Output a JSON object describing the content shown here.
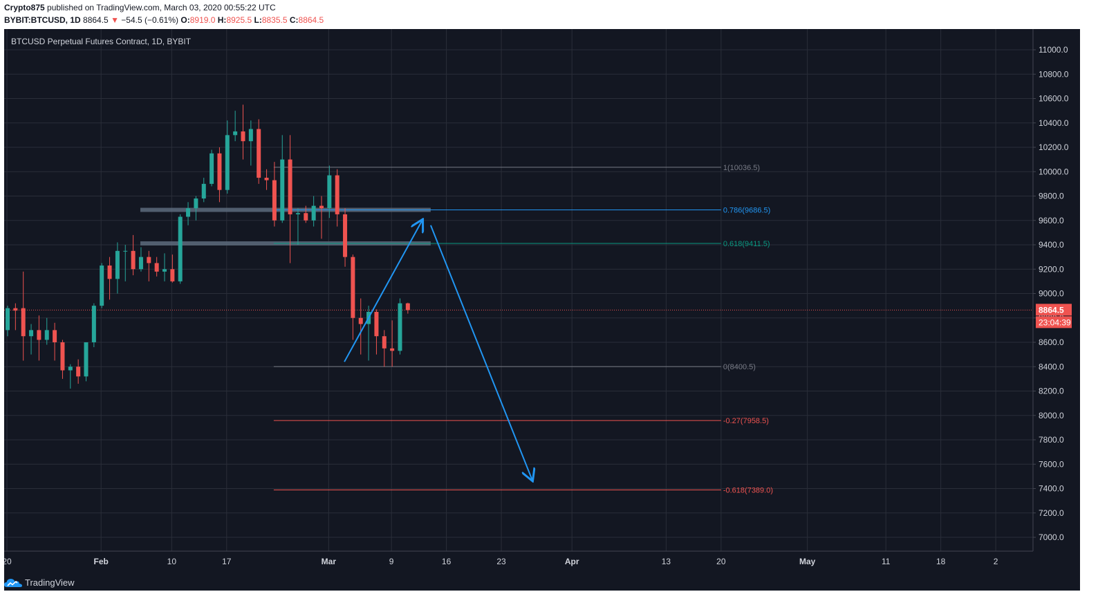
{
  "header": {
    "author": "Crypto875",
    "published_text": "published on TradingView.com, March 03, 2020 00:55:22 UTC",
    "symbol": "BYBIT:BTCUSD, 1D",
    "last": "8864.5",
    "change_arrow": "▼",
    "change": "−54.5 (−0.61%)",
    "o_label": "O:",
    "o_val": "8919.0",
    "h_label": "H:",
    "h_val": "8925.5",
    "l_label": "L:",
    "l_val": "8835.5",
    "c_label": "C:",
    "c_val": "8864.5"
  },
  "branding": {
    "name": "TradingView"
  },
  "chart_data": {
    "type": "candlestick",
    "title": "BTCUSD Perpetual Futures Contract, 1D, BYBIT",
    "ylim": [
      6900,
      11150
    ],
    "y_ticks": [
      "11000.0",
      "10800.0",
      "10600.0",
      "10400.0",
      "10200.0",
      "10000.0",
      "9800.0",
      "9600.0",
      "9400.0",
      "9200.0",
      "9000.0",
      "8800.0",
      "8600.0",
      "8400.0",
      "8200.0",
      "8000.0",
      "7800.0",
      "7600.0",
      "7400.0",
      "7200.0",
      "7000.0"
    ],
    "x_ticks": [
      {
        "label": "20",
        "day": 0
      },
      {
        "label": "Feb",
        "day": 12
      },
      {
        "label": "10",
        "day": 21
      },
      {
        "label": "17",
        "day": 28
      },
      {
        "label": "Mar",
        "day": 41
      },
      {
        "label": "9",
        "day": 49
      },
      {
        "label": "16",
        "day": 56
      },
      {
        "label": "23",
        "day": 63
      },
      {
        "label": "Apr",
        "day": 72
      },
      {
        "label": "13",
        "day": 84
      },
      {
        "label": "20",
        "day": 91
      },
      {
        "label": "May",
        "day": 102
      },
      {
        "label": "11",
        "day": 112
      },
      {
        "label": "18",
        "day": 119
      },
      {
        "label": "2",
        "day": 126
      }
    ],
    "candles": [
      [
        8700,
        8900,
        8650,
        8880
      ],
      [
        8880,
        8920,
        8700,
        8860
      ],
      [
        8880,
        9180,
        8450,
        8650
      ],
      [
        8650,
        8750,
        8500,
        8700
      ],
      [
        8700,
        8820,
        8450,
        8620
      ],
      [
        8620,
        8800,
        8580,
        8700
      ],
      [
        8700,
        8760,
        8450,
        8600
      ],
      [
        8600,
        8620,
        8300,
        8370
      ],
      [
        8370,
        8420,
        8220,
        8400
      ],
      [
        8400,
        8460,
        8260,
        8320
      ],
      [
        8320,
        8600,
        8280,
        8600
      ],
      [
        8600,
        8920,
        8560,
        8900
      ],
      [
        8900,
        9250,
        8880,
        9230
      ],
      [
        9230,
        9300,
        8950,
        9120
      ],
      [
        9120,
        9420,
        9000,
        9350
      ],
      [
        9350,
        9400,
        9100,
        9350
      ],
      [
        9350,
        9480,
        9150,
        9200
      ],
      [
        9200,
        9380,
        9180,
        9300
      ],
      [
        9300,
        9350,
        9100,
        9250
      ],
      [
        9250,
        9300,
        9140,
        9180
      ],
      [
        9180,
        9330,
        9100,
        9200
      ],
      [
        9200,
        9320,
        9090,
        9100
      ],
      [
        9100,
        9650,
        9080,
        9630
      ],
      [
        9630,
        9750,
        9560,
        9700
      ],
      [
        9700,
        9800,
        9600,
        9780
      ],
      [
        9780,
        9950,
        9750,
        9900
      ],
      [
        9900,
        10180,
        9880,
        10150
      ],
      [
        10150,
        10200,
        9750,
        9850
      ],
      [
        9850,
        10420,
        9820,
        10300
      ],
      [
        10300,
        10500,
        10250,
        10330
      ],
      [
        10330,
        10550,
        10100,
        10250
      ],
      [
        10250,
        10420,
        10050,
        10350
      ],
      [
        10350,
        10430,
        9900,
        9950
      ],
      [
        9950,
        10020,
        9850,
        9930
      ],
      [
        9930,
        10080,
        9550,
        9600
      ],
      [
        9600,
        10300,
        9580,
        10100
      ],
      [
        10100,
        10300,
        9250,
        9650
      ],
      [
        9650,
        9700,
        9400,
        9660
      ],
      [
        9660,
        9720,
        9580,
        9600
      ],
      [
        9600,
        9800,
        9550,
        9720
      ],
      [
        9720,
        9800,
        9450,
        9700
      ],
      [
        9700,
        10050,
        9620,
        9970
      ],
      [
        9970,
        10020,
        9550,
        9650
      ],
      [
        9650,
        9700,
        9220,
        9300
      ],
      [
        9300,
        9320,
        8620,
        8800
      ],
      [
        8800,
        8960,
        8500,
        8750
      ],
      [
        8750,
        8900,
        8450,
        8850
      ],
      [
        8850,
        8870,
        8500,
        8650
      ],
      [
        8650,
        8700,
        8400,
        8550
      ],
      [
        8550,
        8780,
        8400,
        8530
      ],
      [
        8530,
        8960,
        8500,
        8920
      ],
      [
        8920,
        8925,
        8835,
        8865
      ]
    ],
    "last_price": {
      "value": 8864.5,
      "label": "8864.5",
      "countdown": "23:04:39"
    },
    "fib_levels": [
      {
        "label": "1(10036.5)",
        "value": 10036.5,
        "color": "#787b86"
      },
      {
        "label": "0.786(9686.5)",
        "value": 9686.5,
        "color": "#2196f3"
      },
      {
        "label": "0.618(9411.5)",
        "value": 9411.5,
        "color": "#089981"
      },
      {
        "label": "0(8400.5)",
        "value": 8400.5,
        "color": "#787b86"
      },
      {
        "label": "-0.27(7958.5)",
        "value": 7958.5,
        "color": "#ef5350"
      },
      {
        "label": "-0.618(7389.0)",
        "value": 7389.0,
        "color": "#ef5350"
      }
    ],
    "fib_start_day": 34,
    "fib_end_day": 91,
    "zones": [
      {
        "value": 9686.5,
        "from_day": 17,
        "to_day": 54
      },
      {
        "value": 9411.5,
        "from_day": 17,
        "to_day": 54
      }
    ],
    "arrows": [
      {
        "from": [
          43,
          8440
        ],
        "to": [
          53,
          9610
        ]
      },
      {
        "from": [
          54,
          9560
        ],
        "to": [
          67,
          7460
        ]
      }
    ]
  },
  "colors": {
    "bg": "#131722",
    "grid": "#2a2e39",
    "up": "#26a69a",
    "down": "#ef5350",
    "text": "#d1d4dc",
    "axis": "#d1d4dc",
    "arrow": "#2196f3",
    "zone": "#5d6b7c"
  }
}
